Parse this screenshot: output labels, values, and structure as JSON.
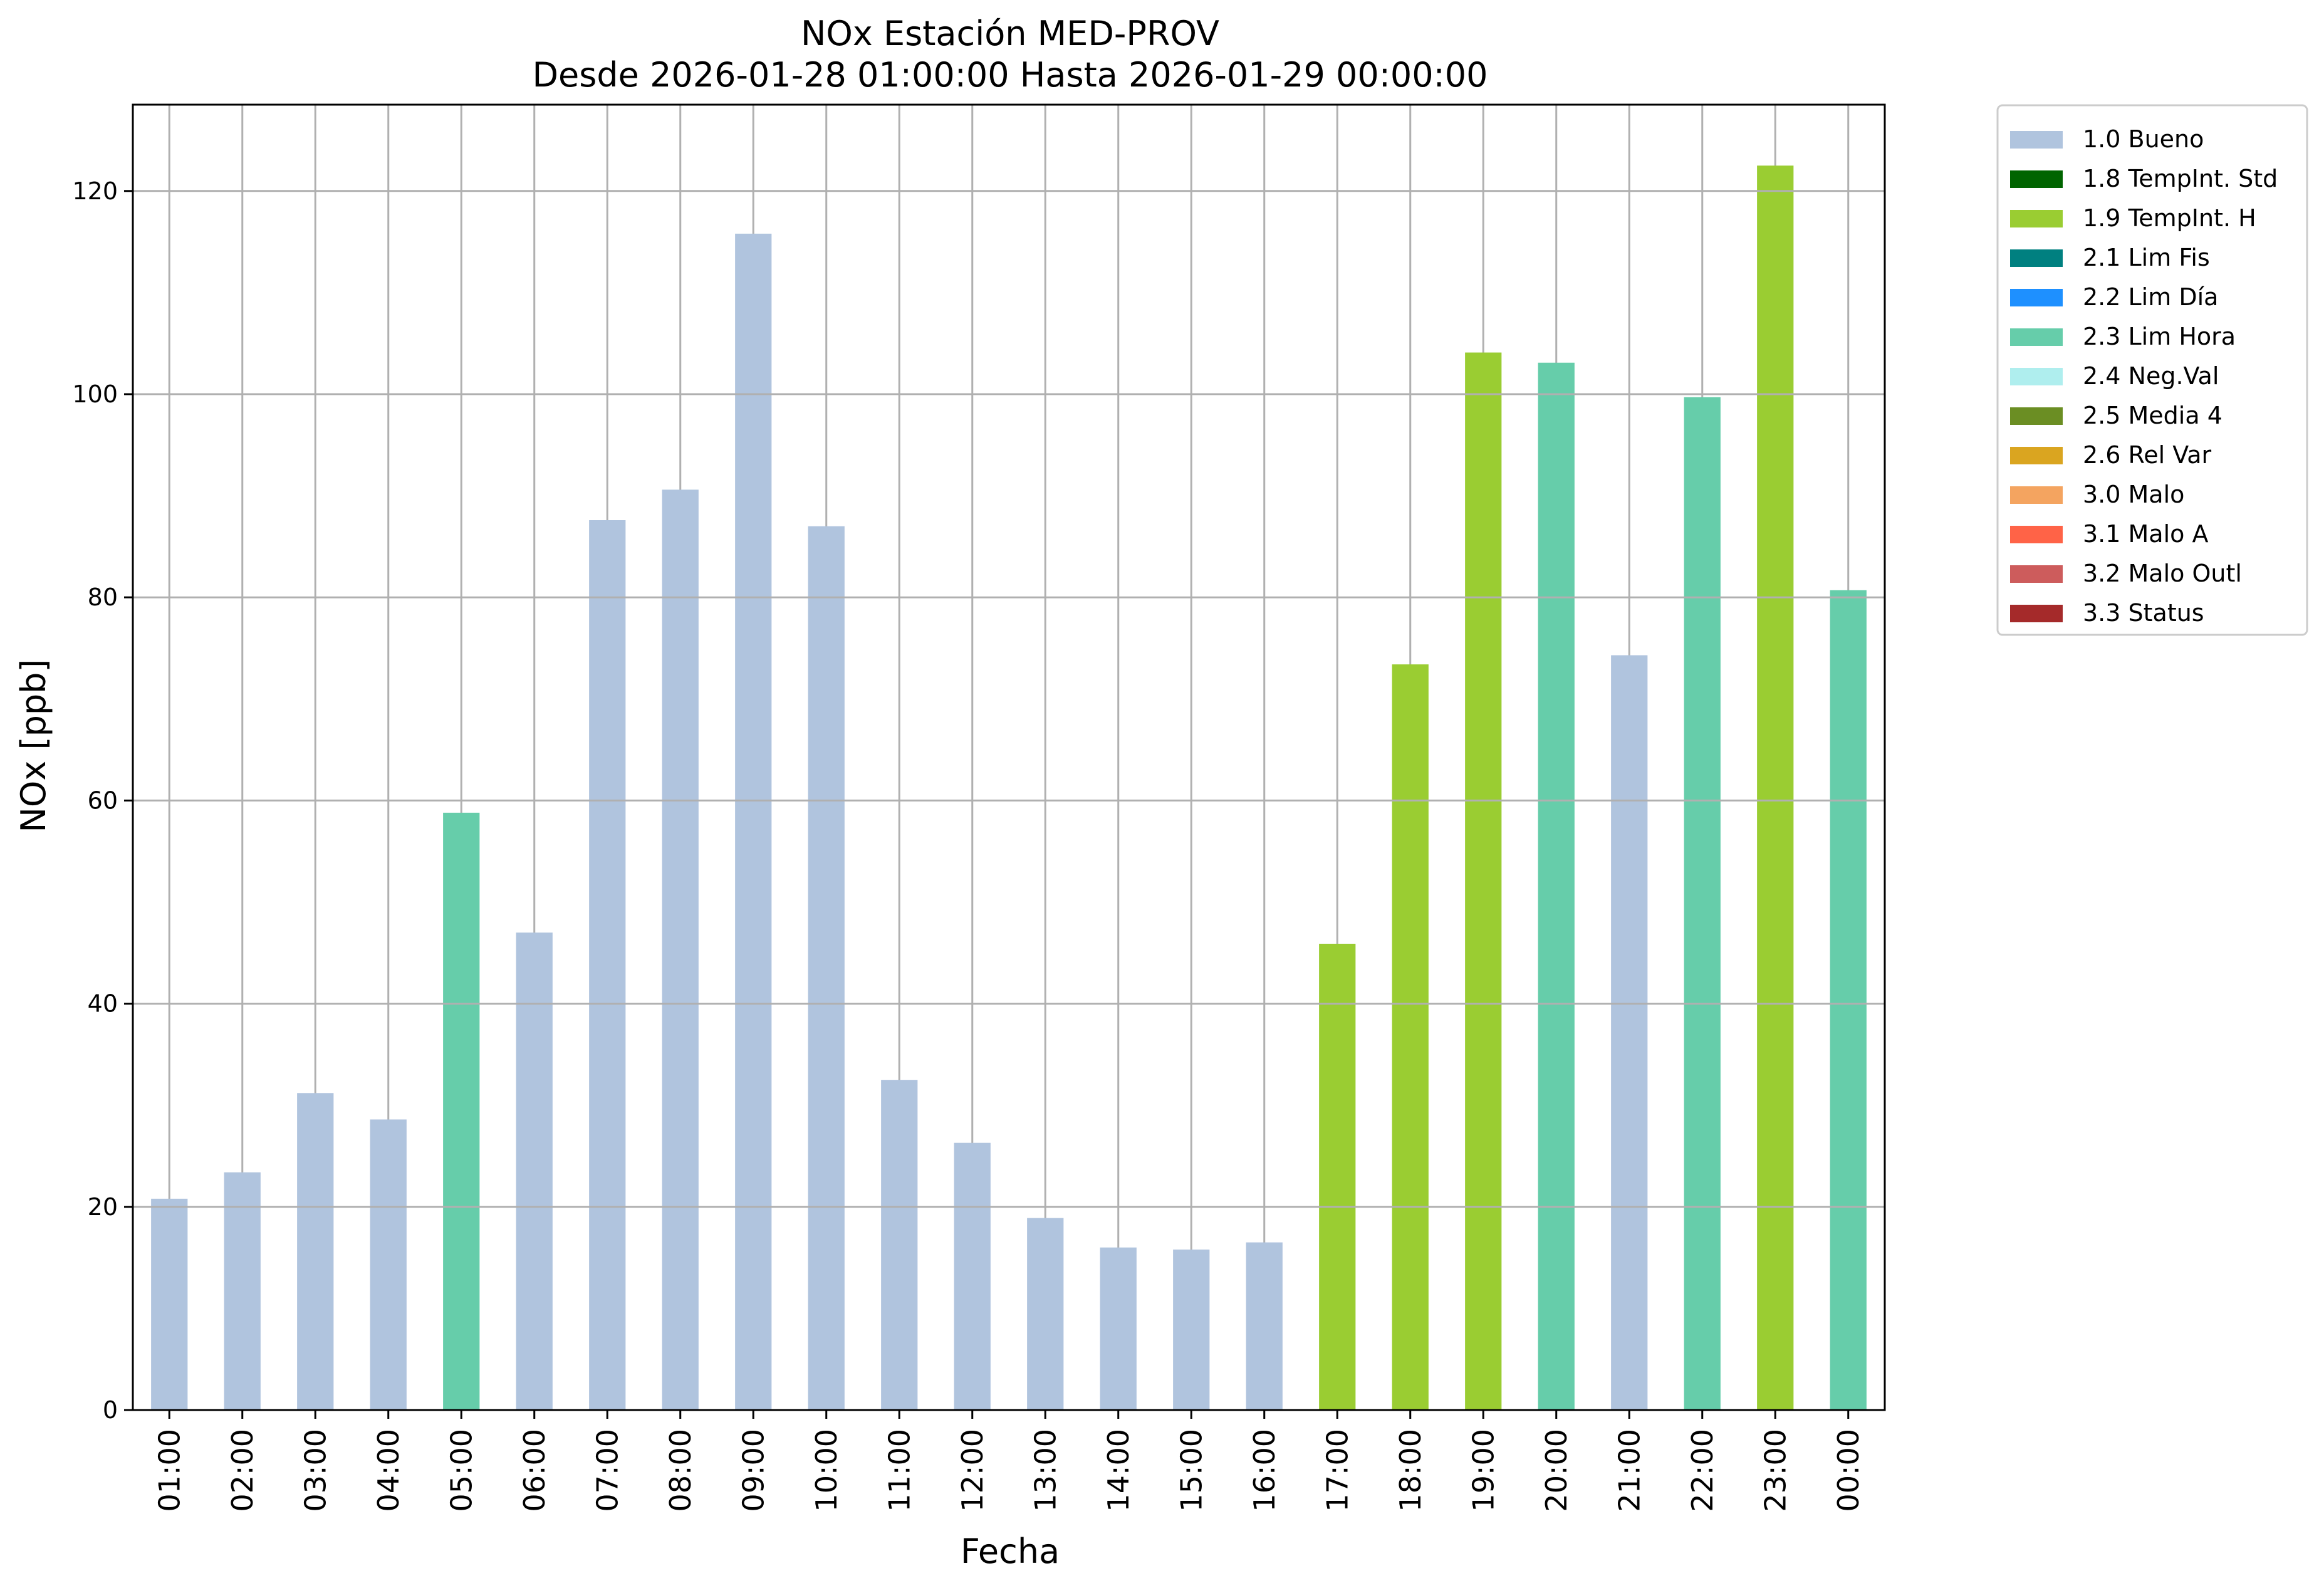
{
  "chart_data": {
    "type": "bar",
    "title": "NOx Estación MED-PROV",
    "subtitle": "Desde 2026-01-28 01:00:00 Hasta 2026-01-29 00:00:00",
    "xlabel": "Fecha",
    "ylabel": "NOx [ppb]",
    "ylim": [
      0,
      128.5
    ],
    "yticks": [
      0,
      20,
      40,
      60,
      80,
      100,
      120
    ],
    "grid": true,
    "legend_position": "outside-top-right",
    "categories": [
      "01:00",
      "02:00",
      "03:00",
      "04:00",
      "05:00",
      "06:00",
      "07:00",
      "08:00",
      "09:00",
      "10:00",
      "11:00",
      "12:00",
      "13:00",
      "14:00",
      "15:00",
      "16:00",
      "17:00",
      "18:00",
      "19:00",
      "20:00",
      "21:00",
      "22:00",
      "23:00",
      "00:00"
    ],
    "values": [
      20.8,
      23.4,
      31.2,
      28.6,
      58.8,
      47.0,
      87.6,
      90.6,
      115.8,
      87.0,
      32.5,
      26.3,
      18.9,
      16.0,
      15.8,
      16.5,
      45.9,
      73.4,
      104.1,
      103.1,
      74.3,
      99.7,
      122.5,
      80.7
    ],
    "flags": [
      "1.0 Bueno",
      "1.0 Bueno",
      "1.0 Bueno",
      "1.0 Bueno",
      "2.3 Lim Hora",
      "1.0 Bueno",
      "1.0 Bueno",
      "1.0 Bueno",
      "1.0 Bueno",
      "1.0 Bueno",
      "1.0 Bueno",
      "1.0 Bueno",
      "1.0 Bueno",
      "1.0 Bueno",
      "1.0 Bueno",
      "1.0 Bueno",
      "1.9 TempInt. H",
      "1.9 TempInt. H",
      "1.9 TempInt. H",
      "2.3 Lim Hora",
      "1.0 Bueno",
      "2.3 Lim Hora",
      "1.9 TempInt. H",
      "2.3 Lim Hora"
    ],
    "legend": [
      {
        "label": "1.0 Bueno",
        "color": "#b0c4de"
      },
      {
        "label": "1.8 TempInt. Std",
        "color": "#006400"
      },
      {
        "label": "1.9 TempInt. H",
        "color": "#9acd32"
      },
      {
        "label": "2.1 Lim Fis",
        "color": "#008080"
      },
      {
        "label": "2.2 Lim Día",
        "color": "#1e90ff"
      },
      {
        "label": "2.3 Lim Hora",
        "color": "#66cdaa"
      },
      {
        "label": "2.4 Neg.Val",
        "color": "#afeeee"
      },
      {
        "label": "2.5 Media 4",
        "color": "#6b8e23"
      },
      {
        "label": "2.6 Rel Var",
        "color": "#daa520"
      },
      {
        "label": "3.0 Malo",
        "color": "#f4a460"
      },
      {
        "label": "3.1 Malo A",
        "color": "#ff6347"
      },
      {
        "label": "3.2 Malo Outl",
        "color": "#cd5c5c"
      },
      {
        "label": "3.3 Status",
        "color": "#a52a2a"
      }
    ]
  }
}
